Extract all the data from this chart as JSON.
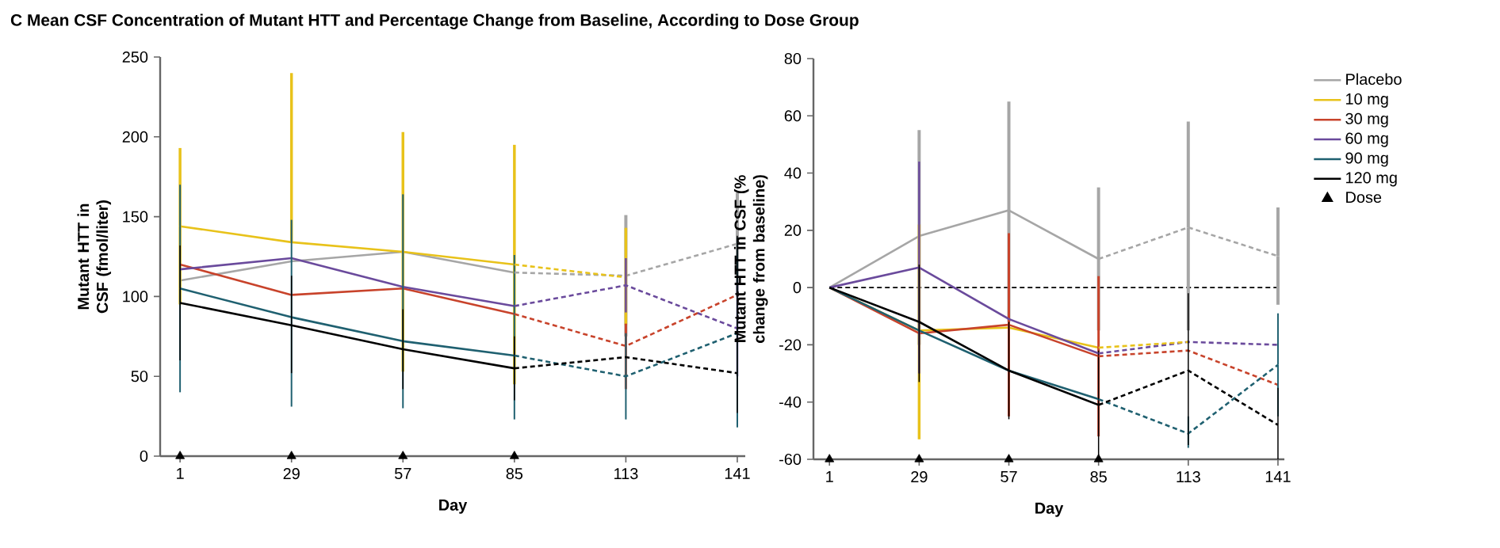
{
  "chart_data": [
    {
      "type": "line",
      "title": "C  Mean CSF Concentration of Mutant HTT and Percentage Change from Baseline, According to Dose Group",
      "xlabel": "Day",
      "ylabel": "Mutant HTT in CSF (fmol/liter)",
      "xlim": [
        -4,
        143
      ],
      "ylim": [
        0,
        250
      ],
      "xticks": [
        1,
        29,
        57,
        85,
        113,
        141
      ],
      "yticks": [
        0,
        50,
        100,
        150,
        200,
        250
      ],
      "grid": false,
      "legend": false,
      "marker": "none",
      "series": [
        {
          "color": "#a6a6a6",
          "line_style": "solid",
          "x": [
            1,
            29,
            57,
            85
          ],
          "values": [
            110,
            122,
            128,
            115
          ]
        },
        {
          "color": "#e8c21a",
          "line_style": "solid",
          "x": [
            1,
            29,
            57,
            85
          ],
          "values": [
            144,
            134,
            128,
            120
          ],
          "errors": [
            [
              95,
              193
            ],
            [
              134,
              240
            ],
            [
              53,
              203
            ],
            [
              45,
              195
            ]
          ]
        },
        {
          "color": "#c8432b",
          "line_style": "solid",
          "x": [
            1,
            29,
            57,
            85
          ],
          "values": [
            120,
            101,
            105,
            89
          ]
        },
        {
          "color": "#6a4a9c",
          "line_style": "solid",
          "x": [
            1,
            29,
            57,
            85
          ],
          "values": [
            117,
            124,
            106,
            94
          ]
        },
        {
          "color": "#1f6070",
          "line_style": "solid",
          "x": [
            1,
            29,
            57,
            85
          ],
          "values": [
            105,
            87,
            72,
            63
          ],
          "errors": [
            [
              40,
              170
            ],
            [
              31,
              148
            ],
            [
              30,
              164
            ],
            [
              23,
              126
            ]
          ]
        },
        {
          "color": "#000000",
          "line_style": "solid",
          "x": [
            1,
            29,
            57,
            85
          ],
          "values": [
            96,
            82,
            67,
            55
          ],
          "errors": [
            [
              60,
              132
            ],
            [
              52,
              113
            ],
            [
              42,
              92
            ],
            [
              35,
              75
            ]
          ]
        },
        {
          "color": "#a6a6a6",
          "line_style": "dashed",
          "x": [
            85,
            113,
            141
          ],
          "values": [
            115,
            113,
            133
          ],
          "errors": [
            null,
            [
              75,
              151
            ],
            [
              100,
              165
            ]
          ]
        },
        {
          "color": "#e8c21a",
          "line_style": "dashed",
          "x": [
            85,
            113
          ],
          "values": [
            120,
            112
          ],
          "errors": [
            null,
            [
              82,
              143
            ]
          ]
        },
        {
          "color": "#c8432b",
          "line_style": "dashed",
          "x": [
            85,
            113,
            141
          ],
          "values": [
            89,
            69,
            101
          ],
          "errors": [
            null,
            [
              42,
              83
            ],
            null
          ]
        },
        {
          "color": "#6a4a9c",
          "line_style": "dashed",
          "x": [
            85,
            113,
            141
          ],
          "values": [
            94,
            107,
            80
          ],
          "errors": [
            null,
            [
              90,
              124
            ],
            [
              50,
              110
            ]
          ]
        },
        {
          "color": "#1f6070",
          "line_style": "dashed",
          "x": [
            85,
            113,
            141
          ],
          "values": [
            63,
            50,
            77
          ],
          "errors": [
            null,
            [
              23,
              77
            ],
            [
              18,
              137
            ]
          ]
        },
        {
          "color": "#000000",
          "line_style": "dashed",
          "x": [
            85,
            113,
            141
          ],
          "values": [
            55,
            62,
            52
          ],
          "errors": [
            null,
            null,
            [
              27,
              138
            ]
          ]
        },
        {
          "type": "scatter",
          "marker": "triangle",
          "color": "#000000",
          "x": [
            1,
            29,
            57,
            85
          ],
          "values": [
            0,
            0,
            0,
            0
          ]
        }
      ]
    },
    {
      "type": "line",
      "xlabel": "Day",
      "ylabel": "Mutant HTT in CSF (% change from baseline)",
      "xlim": [
        -4,
        143
      ],
      "ylim": [
        -60,
        80
      ],
      "xticks": [
        1,
        29,
        57,
        85,
        113,
        141
      ],
      "yticks": [
        -60,
        -40,
        -20,
        0,
        20,
        40,
        60,
        80
      ],
      "grid": false,
      "legend": "right",
      "marker": "none",
      "ref_lines": [
        {
          "axis": "y",
          "value": 0,
          "color": "#000000",
          "line_style": "dashed"
        }
      ],
      "series": [
        {
          "name": "Placebo",
          "color": "#a6a6a6",
          "line_style": "solid",
          "x": [
            1,
            29,
            57,
            85
          ],
          "values": [
            0,
            18,
            27,
            10
          ],
          "errors": [
            null,
            [
              -20,
              55
            ],
            [
              -12,
              65
            ],
            [
              -15,
              35
            ]
          ]
        },
        {
          "name": "10 mg",
          "color": "#e8c21a",
          "line_style": "solid",
          "x": [
            1,
            29,
            57,
            85
          ],
          "values": [
            0,
            -15,
            -14,
            -21
          ],
          "errors": [
            null,
            [
              -53,
              22
            ],
            null,
            null
          ]
        },
        {
          "name": "30 mg",
          "color": "#c8432b",
          "line_style": "solid",
          "x": [
            1,
            29,
            57,
            85
          ],
          "values": [
            0,
            -16,
            -13,
            -24
          ],
          "errors": [
            null,
            null,
            [
              -45,
              19
            ],
            [
              -52,
              4
            ]
          ]
        },
        {
          "name": "60 mg",
          "color": "#6a4a9c",
          "line_style": "solid",
          "x": [
            1,
            29,
            57,
            85
          ],
          "values": [
            0,
            7,
            -11,
            -23
          ],
          "errors": [
            null,
            [
              -30,
              44
            ],
            null,
            null
          ]
        },
        {
          "name": "90 mg",
          "color": "#1f6070",
          "line_style": "solid",
          "x": [
            1,
            29,
            57,
            85
          ],
          "values": [
            0,
            -15,
            -29,
            -39
          ]
        },
        {
          "name": "120 mg",
          "color": "#000000",
          "line_style": "solid",
          "x": [
            1,
            29,
            57,
            85
          ],
          "values": [
            0,
            -12,
            -29,
            -41
          ],
          "errors": [
            null,
            [
              -33,
              8
            ],
            [
              -46,
              -12
            ],
            [
              -60,
              -22
            ]
          ]
        },
        {
          "color": "#a6a6a6",
          "line_style": "dashed",
          "x": [
            85,
            113,
            141
          ],
          "values": [
            10,
            21,
            11
          ],
          "errors": [
            null,
            [
              -15,
              58
            ],
            [
              -6,
              28
            ]
          ]
        },
        {
          "color": "#c8432b",
          "line_style": "dashed",
          "x": [
            85,
            113,
            141
          ],
          "values": [
            -24,
            -22,
            -34
          ]
        },
        {
          "color": "#6a4a9c",
          "line_style": "dashed",
          "x": [
            85,
            113,
            141
          ],
          "values": [
            -23,
            -19,
            -20
          ]
        },
        {
          "color": "#e8c21a",
          "line_style": "dashed",
          "x": [
            85,
            113
          ],
          "values": [
            -21,
            -19
          ]
        },
        {
          "color": "#1f6070",
          "line_style": "dashed",
          "x": [
            85,
            113,
            141
          ],
          "values": [
            -39,
            -51,
            -27
          ],
          "errors": [
            null,
            [
              -56,
              -45
            ],
            [
              -45,
              -9
            ]
          ]
        },
        {
          "color": "#000000",
          "line_style": "dashed",
          "x": [
            85,
            113,
            141
          ],
          "values": [
            -41,
            -29,
            -48
          ],
          "errors": [
            null,
            [
              -55,
              -2
            ],
            [
              -60,
              -35
            ]
          ]
        },
        {
          "name": "Dose",
          "type": "scatter",
          "marker": "triangle",
          "color": "#000000",
          "x": [
            1,
            29,
            57,
            85
          ],
          "values": [
            -60,
            -60,
            -60,
            -60
          ]
        }
      ]
    }
  ]
}
